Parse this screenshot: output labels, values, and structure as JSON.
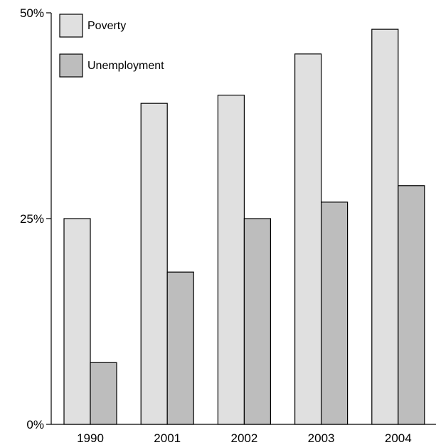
{
  "chart_data": {
    "type": "bar",
    "title": "",
    "xlabel": "",
    "ylabel": "",
    "categories": [
      "1990",
      "2001",
      "2002",
      "2003",
      "2004"
    ],
    "series": [
      {
        "name": "Poverty",
        "values": [
          25,
          39,
          40,
          45,
          48
        ],
        "color": "#e0e0e0"
      },
      {
        "name": "Unemployment",
        "values": [
          7.5,
          18.5,
          25,
          27,
          29
        ],
        "color": "#bdbdbd"
      }
    ],
    "ylim": [
      0,
      50
    ],
    "yticks": [
      {
        "value": 0,
        "label": "0%"
      },
      {
        "value": 25,
        "label": "25%"
      },
      {
        "value": 50,
        "label": "50%"
      }
    ],
    "grid": false,
    "legend_position": "top-left"
  }
}
